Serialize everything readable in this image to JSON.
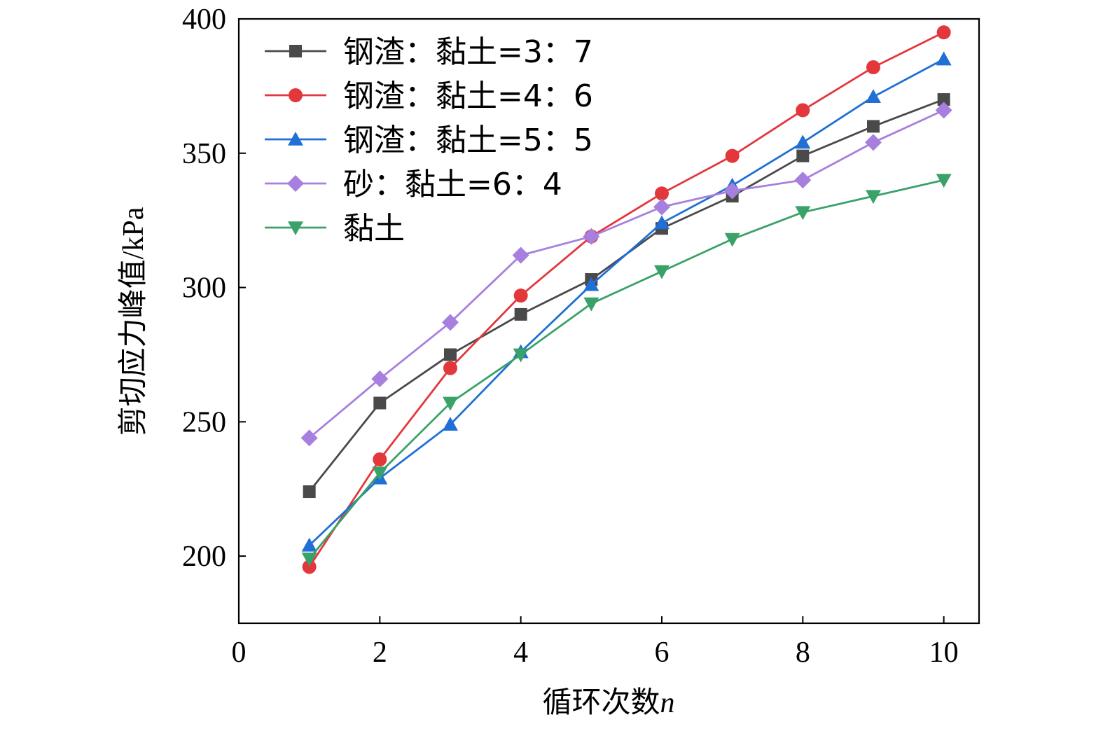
{
  "chart_data": {
    "type": "line",
    "title": "",
    "xlabel_main": "循环次数",
    "xlabel_var": "n",
    "ylabel": "剪切应力峰值/kPa",
    "xlim": [
      0,
      10.5
    ],
    "ylim": [
      175,
      400
    ],
    "xticks": [
      0,
      2,
      4,
      6,
      8,
      10
    ],
    "yticks": [
      200,
      250,
      300,
      350,
      400
    ],
    "grid": false,
    "legend_position": "top-left",
    "x": [
      1,
      2,
      3,
      4,
      5,
      6,
      7,
      8,
      9,
      10
    ],
    "series": [
      {
        "name": "钢渣：黏土=3：7",
        "marker": "square",
        "color": "#4a4a4a",
        "values": [
          224,
          257,
          275,
          290,
          303,
          322,
          334,
          349,
          360,
          370
        ]
      },
      {
        "name": "钢渣：黏土=4：6",
        "marker": "circle",
        "color": "#e3373c",
        "values": [
          196,
          236,
          270,
          297,
          319,
          335,
          349,
          366,
          382,
          395
        ]
      },
      {
        "name": "钢渣：黏土=5：5",
        "marker": "triangle-up",
        "color": "#1f6fd6",
        "values": [
          204,
          229,
          249,
          276,
          301,
          324,
          338,
          354,
          371,
          385
        ]
      },
      {
        "name": "砂：黏土=6：4",
        "marker": "diamond",
        "color": "#a77fde",
        "values": [
          244,
          266,
          287,
          312,
          319,
          330,
          336,
          340,
          354,
          366
        ]
      },
      {
        "name": "黏土",
        "marker": "triangle-down",
        "color": "#3aa169",
        "values": [
          199,
          231,
          257,
          275,
          294,
          306,
          318,
          328,
          334,
          340
        ]
      }
    ]
  }
}
